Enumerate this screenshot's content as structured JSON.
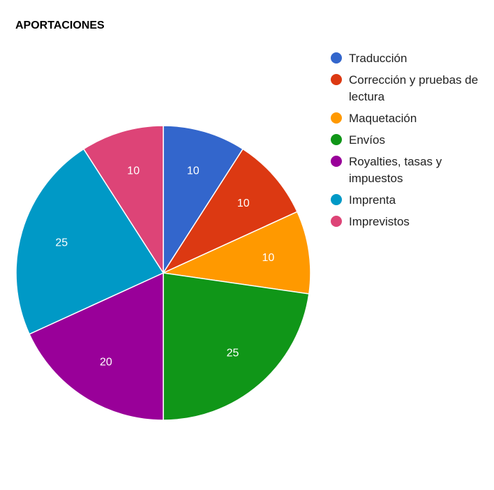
{
  "chart_data": {
    "type": "pie",
    "title": "APORTACIONES",
    "legend_position": "right",
    "slices": [
      {
        "label": "Traducción",
        "value": 10,
        "color": "#3366cc"
      },
      {
        "label": "Corrección y pruebas de lectura",
        "value": 10,
        "color": "#dc3912"
      },
      {
        "label": "Maquetación",
        "value": 10,
        "color": "#ff9900"
      },
      {
        "label": "Envíos",
        "value": 25,
        "color": "#109618"
      },
      {
        "label": "Royalties, tasas y impuestos",
        "value": 20,
        "color": "#990099"
      },
      {
        "label": "Imprenta",
        "value": 25,
        "color": "#0099c6"
      },
      {
        "label": "Imprevistos",
        "value": 10,
        "color": "#dd4477"
      }
    ]
  }
}
